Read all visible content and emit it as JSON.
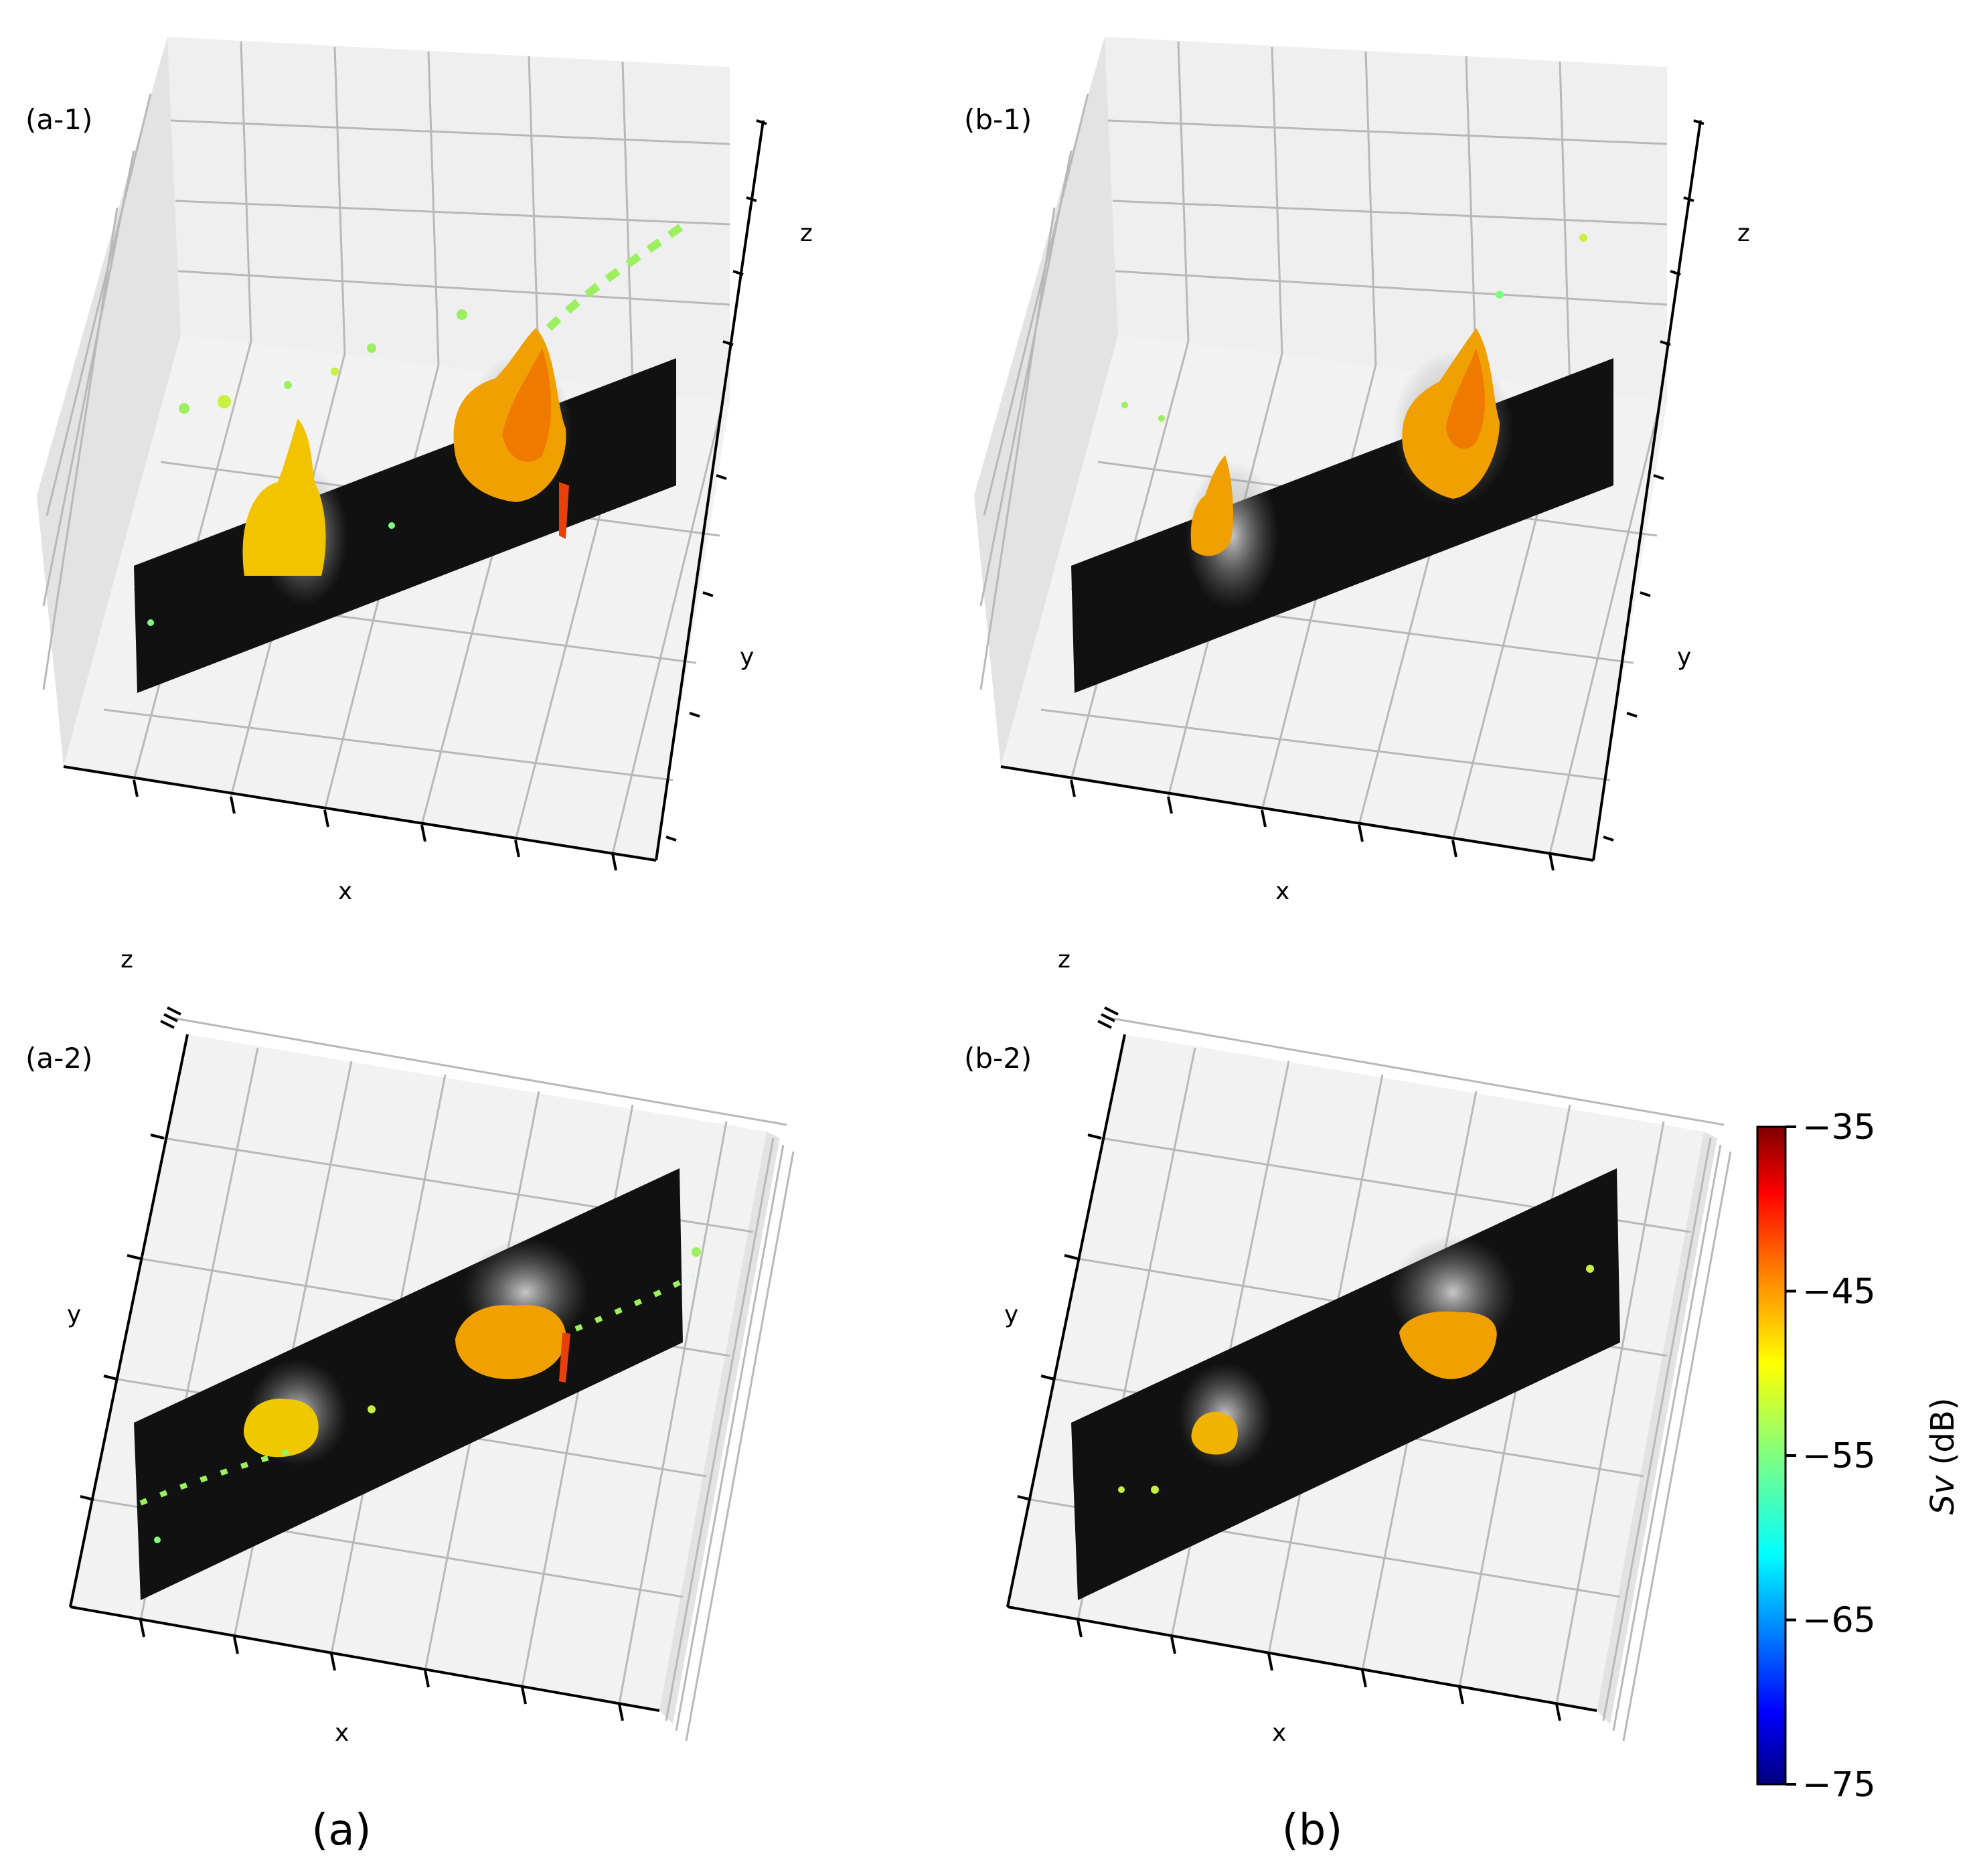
{
  "figure": {
    "group_labels": [
      "(a)",
      "(b)"
    ],
    "panels": [
      {
        "label": "(a-1)",
        "view": "oblique",
        "axes": {
          "x": "x",
          "y": "y",
          "z": "z"
        },
        "group": "a"
      },
      {
        "label": "(b-1)",
        "view": "oblique",
        "axes": {
          "x": "x",
          "y": "y",
          "z": "z"
        },
        "group": "b"
      },
      {
        "label": "(a-2)",
        "view": "top",
        "axes": {
          "x": "x",
          "y": "y",
          "z": "z"
        },
        "group": "a"
      },
      {
        "label": "(b-2)",
        "view": "top",
        "axes": {
          "x": "x",
          "y": "y",
          "z": "z"
        },
        "group": "b"
      }
    ]
  },
  "chart_data": {
    "type": "scatter",
    "projection": "3d",
    "colormap": "jet",
    "background_echo_color": "#111111",
    "colorbar": {
      "label_italic": "Sv",
      "label_unit": " (dB)",
      "ticks": [
        "−35",
        "−45",
        "−55",
        "−65",
        "−75"
      ],
      "vmin": -75,
      "vmax": -35,
      "colors": [
        "#00007f",
        "#0000ff",
        "#007fff",
        "#00ffff",
        "#7fff7f",
        "#ffff00",
        "#ff7f00",
        "#ff0000",
        "#7f0000"
      ]
    },
    "grid": true,
    "legend": "none"
  }
}
